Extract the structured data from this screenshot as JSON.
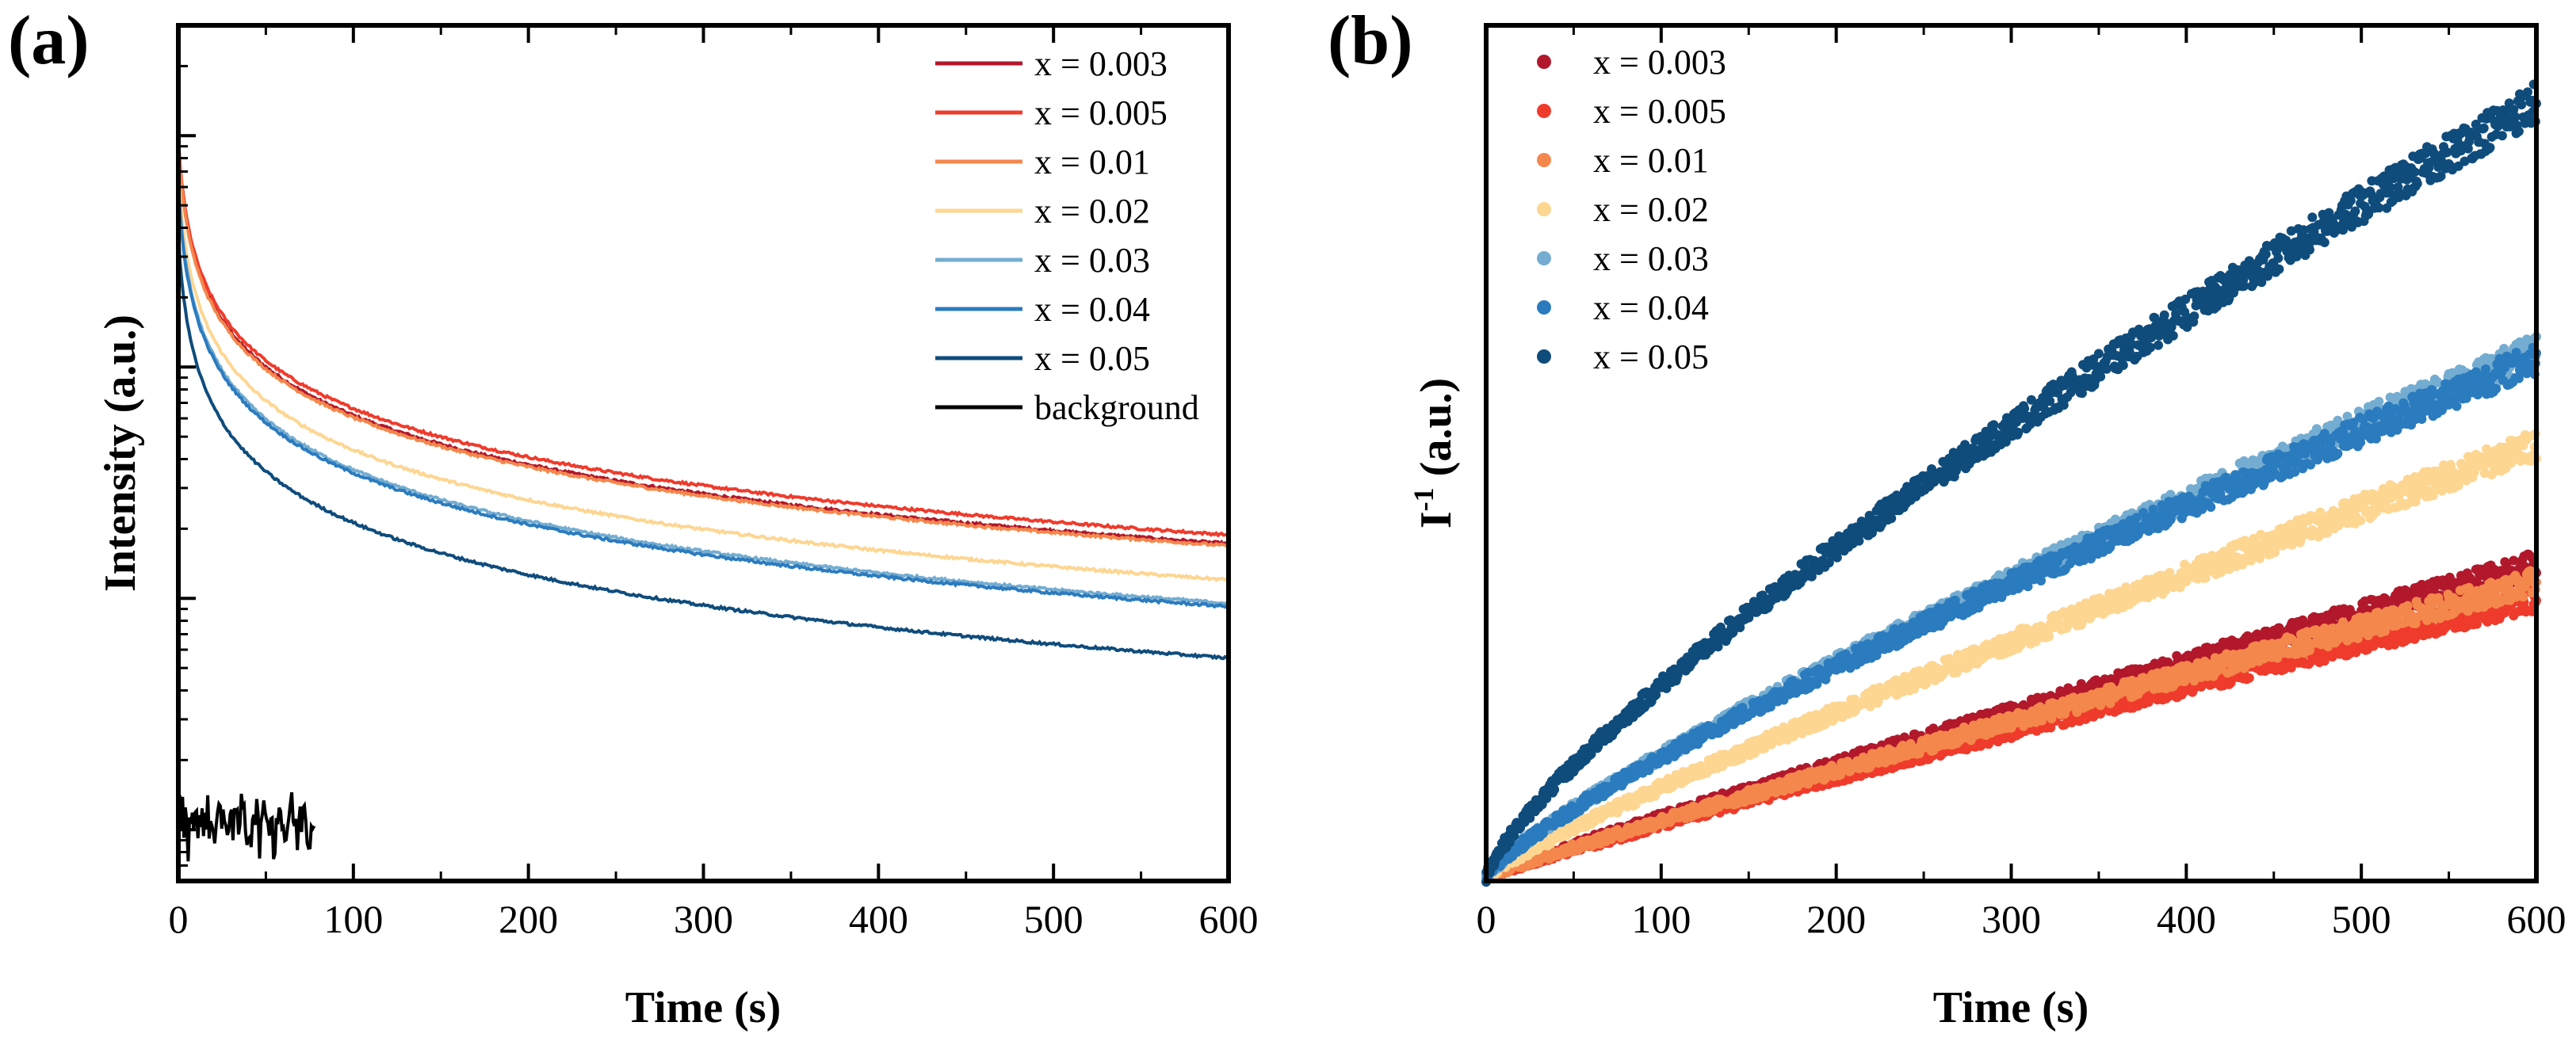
{
  "chart_data": [
    {
      "panel": "(a)",
      "type": "line",
      "xlabel": "Time (s)",
      "ylabel": "Intensity (a.u.)",
      "yscale": "log",
      "xlim": [
        0,
        600
      ],
      "ylim": [
        0.06,
        300
      ],
      "xticks": [
        "0",
        "100",
        "200",
        "300",
        "400",
        "500",
        "600"
      ],
      "x_tick_values": [
        0,
        100,
        200,
        300,
        400,
        500,
        600
      ],
      "legend_position": "top-right",
      "series": [
        {
          "name": "x = 0.003",
          "color": "#b2182b",
          "c": 95,
          "tau": 2.3,
          "p": 0.72,
          "start": 0,
          "end": 600
        },
        {
          "name": "x = 0.005",
          "color": "#ef3b2c",
          "c": 98,
          "tau": 2.3,
          "p": 0.71,
          "start": 0,
          "end": 600
        },
        {
          "name": "x = 0.01",
          "color": "#f4874c",
          "c": 93,
          "tau": 2.3,
          "p": 0.72,
          "start": 0,
          "end": 600
        },
        {
          "name": "x = 0.02",
          "color": "#fdd692",
          "c": 70,
          "tau": 2.3,
          "p": 0.73,
          "start": 0,
          "end": 600
        },
        {
          "name": "x = 0.03",
          "color": "#74add1",
          "c": 62,
          "tau": 2.3,
          "p": 0.75,
          "start": 0,
          "end": 600
        },
        {
          "name": "x = 0.04",
          "color": "#2b7bbf",
          "c": 60,
          "tau": 2.3,
          "p": 0.75,
          "start": 0,
          "end": 600
        },
        {
          "name": "x = 0.05",
          "color": "#0f4c7c",
          "c": 38,
          "tau": 2.3,
          "p": 0.76,
          "start": 0,
          "end": 600
        },
        {
          "name": "background",
          "color": "#000000",
          "level": 0.11,
          "start": 0,
          "end": 78
        }
      ]
    },
    {
      "panel": "(b)",
      "type": "scatter",
      "xlabel": "Time (s)",
      "ylabel_main": "I",
      "ylabel_sup": "-1",
      "ylabel_suffix": " (a.u.)",
      "xlim": [
        0,
        600
      ],
      "ylim": [
        0,
        1
      ],
      "xticks": [
        "0",
        "100",
        "200",
        "300",
        "400",
        "500",
        "600"
      ],
      "x_tick_values": [
        0,
        100,
        200,
        300,
        400,
        500,
        600
      ],
      "legend_position": "top-left",
      "series": [
        {
          "name": "x = 0.003",
          "color": "#b2182b",
          "end_value": 0.37,
          "exponent": 0.93
        },
        {
          "name": "x = 0.005",
          "color": "#ef3b2c",
          "end_value": 0.33,
          "exponent": 0.93
        },
        {
          "name": "x = 0.01",
          "color": "#f4874c",
          "end_value": 0.35,
          "exponent": 0.93
        },
        {
          "name": "x = 0.02",
          "color": "#fdd692",
          "end_value": 0.51,
          "exponent": 0.88
        },
        {
          "name": "x = 0.03",
          "color": "#74add1",
          "end_value": 0.62,
          "exponent": 0.82
        },
        {
          "name": "x = 0.04",
          "color": "#2b7bbf",
          "end_value": 0.61,
          "exponent": 0.82
        },
        {
          "name": "x = 0.05",
          "color": "#0f4c7c",
          "end_value": 0.91,
          "exponent": 0.78
        }
      ]
    }
  ]
}
